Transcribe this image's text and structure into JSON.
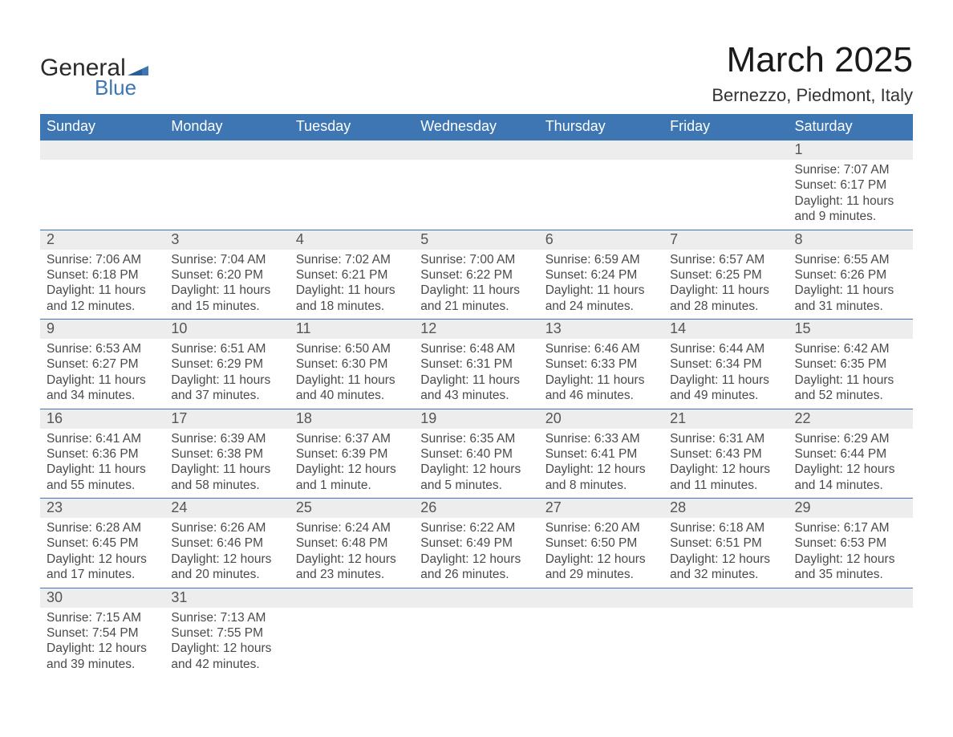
{
  "logo": {
    "line1": "General",
    "line2": "Blue"
  },
  "title": "March 2025",
  "location": "Bernezzo, Piedmont, Italy",
  "colors": {
    "accent": "#3d76b3",
    "row_grey": "#ededed",
    "text": "#333333",
    "background": "#ffffff"
  },
  "weekdays": [
    "Sunday",
    "Monday",
    "Tuesday",
    "Wednesday",
    "Thursday",
    "Friday",
    "Saturday"
  ],
  "weeks": [
    [
      null,
      null,
      null,
      null,
      null,
      null,
      {
        "n": "1",
        "sunrise": "Sunrise: 7:07 AM",
        "sunset": "Sunset: 6:17 PM",
        "daylight": "Daylight: 11 hours and 9 minutes."
      }
    ],
    [
      {
        "n": "2",
        "sunrise": "Sunrise: 7:06 AM",
        "sunset": "Sunset: 6:18 PM",
        "daylight": "Daylight: 11 hours and 12 minutes."
      },
      {
        "n": "3",
        "sunrise": "Sunrise: 7:04 AM",
        "sunset": "Sunset: 6:20 PM",
        "daylight": "Daylight: 11 hours and 15 minutes."
      },
      {
        "n": "4",
        "sunrise": "Sunrise: 7:02 AM",
        "sunset": "Sunset: 6:21 PM",
        "daylight": "Daylight: 11 hours and 18 minutes."
      },
      {
        "n": "5",
        "sunrise": "Sunrise: 7:00 AM",
        "sunset": "Sunset: 6:22 PM",
        "daylight": "Daylight: 11 hours and 21 minutes."
      },
      {
        "n": "6",
        "sunrise": "Sunrise: 6:59 AM",
        "sunset": "Sunset: 6:24 PM",
        "daylight": "Daylight: 11 hours and 24 minutes."
      },
      {
        "n": "7",
        "sunrise": "Sunrise: 6:57 AM",
        "sunset": "Sunset: 6:25 PM",
        "daylight": "Daylight: 11 hours and 28 minutes."
      },
      {
        "n": "8",
        "sunrise": "Sunrise: 6:55 AM",
        "sunset": "Sunset: 6:26 PM",
        "daylight": "Daylight: 11 hours and 31 minutes."
      }
    ],
    [
      {
        "n": "9",
        "sunrise": "Sunrise: 6:53 AM",
        "sunset": "Sunset: 6:27 PM",
        "daylight": "Daylight: 11 hours and 34 minutes."
      },
      {
        "n": "10",
        "sunrise": "Sunrise: 6:51 AM",
        "sunset": "Sunset: 6:29 PM",
        "daylight": "Daylight: 11 hours and 37 minutes."
      },
      {
        "n": "11",
        "sunrise": "Sunrise: 6:50 AM",
        "sunset": "Sunset: 6:30 PM",
        "daylight": "Daylight: 11 hours and 40 minutes."
      },
      {
        "n": "12",
        "sunrise": "Sunrise: 6:48 AM",
        "sunset": "Sunset: 6:31 PM",
        "daylight": "Daylight: 11 hours and 43 minutes."
      },
      {
        "n": "13",
        "sunrise": "Sunrise: 6:46 AM",
        "sunset": "Sunset: 6:33 PM",
        "daylight": "Daylight: 11 hours and 46 minutes."
      },
      {
        "n": "14",
        "sunrise": "Sunrise: 6:44 AM",
        "sunset": "Sunset: 6:34 PM",
        "daylight": "Daylight: 11 hours and 49 minutes."
      },
      {
        "n": "15",
        "sunrise": "Sunrise: 6:42 AM",
        "sunset": "Sunset: 6:35 PM",
        "daylight": "Daylight: 11 hours and 52 minutes."
      }
    ],
    [
      {
        "n": "16",
        "sunrise": "Sunrise: 6:41 AM",
        "sunset": "Sunset: 6:36 PM",
        "daylight": "Daylight: 11 hours and 55 minutes."
      },
      {
        "n": "17",
        "sunrise": "Sunrise: 6:39 AM",
        "sunset": "Sunset: 6:38 PM",
        "daylight": "Daylight: 11 hours and 58 minutes."
      },
      {
        "n": "18",
        "sunrise": "Sunrise: 6:37 AM",
        "sunset": "Sunset: 6:39 PM",
        "daylight": "Daylight: 12 hours and 1 minute."
      },
      {
        "n": "19",
        "sunrise": "Sunrise: 6:35 AM",
        "sunset": "Sunset: 6:40 PM",
        "daylight": "Daylight: 12 hours and 5 minutes."
      },
      {
        "n": "20",
        "sunrise": "Sunrise: 6:33 AM",
        "sunset": "Sunset: 6:41 PM",
        "daylight": "Daylight: 12 hours and 8 minutes."
      },
      {
        "n": "21",
        "sunrise": "Sunrise: 6:31 AM",
        "sunset": "Sunset: 6:43 PM",
        "daylight": "Daylight: 12 hours and 11 minutes."
      },
      {
        "n": "22",
        "sunrise": "Sunrise: 6:29 AM",
        "sunset": "Sunset: 6:44 PM",
        "daylight": "Daylight: 12 hours and 14 minutes."
      }
    ],
    [
      {
        "n": "23",
        "sunrise": "Sunrise: 6:28 AM",
        "sunset": "Sunset: 6:45 PM",
        "daylight": "Daylight: 12 hours and 17 minutes."
      },
      {
        "n": "24",
        "sunrise": "Sunrise: 6:26 AM",
        "sunset": "Sunset: 6:46 PM",
        "daylight": "Daylight: 12 hours and 20 minutes."
      },
      {
        "n": "25",
        "sunrise": "Sunrise: 6:24 AM",
        "sunset": "Sunset: 6:48 PM",
        "daylight": "Daylight: 12 hours and 23 minutes."
      },
      {
        "n": "26",
        "sunrise": "Sunrise: 6:22 AM",
        "sunset": "Sunset: 6:49 PM",
        "daylight": "Daylight: 12 hours and 26 minutes."
      },
      {
        "n": "27",
        "sunrise": "Sunrise: 6:20 AM",
        "sunset": "Sunset: 6:50 PM",
        "daylight": "Daylight: 12 hours and 29 minutes."
      },
      {
        "n": "28",
        "sunrise": "Sunrise: 6:18 AM",
        "sunset": "Sunset: 6:51 PM",
        "daylight": "Daylight: 12 hours and 32 minutes."
      },
      {
        "n": "29",
        "sunrise": "Sunrise: 6:17 AM",
        "sunset": "Sunset: 6:53 PM",
        "daylight": "Daylight: 12 hours and 35 minutes."
      }
    ],
    [
      {
        "n": "30",
        "sunrise": "Sunrise: 7:15 AM",
        "sunset": "Sunset: 7:54 PM",
        "daylight": "Daylight: 12 hours and 39 minutes."
      },
      {
        "n": "31",
        "sunrise": "Sunrise: 7:13 AM",
        "sunset": "Sunset: 7:55 PM",
        "daylight": "Daylight: 12 hours and 42 minutes."
      },
      null,
      null,
      null,
      null,
      null
    ]
  ]
}
